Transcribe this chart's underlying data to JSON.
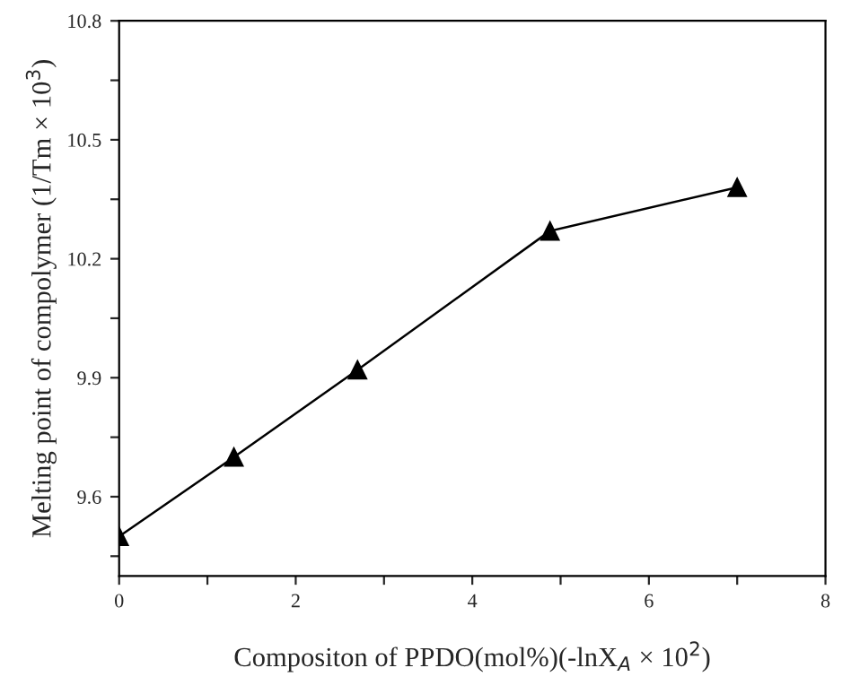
{
  "chart_data": {
    "type": "line",
    "xlabel": "Compositon of PPDO(mol%)(-lnX$_{A}$ × 10$^{2}$)",
    "ylabel": "Melting point of compolymer (1/Tm × 10$^{3}$)",
    "x": [
      0,
      1.3,
      2.7,
      4.88,
      7.0
    ],
    "series": [
      {
        "color": "#000000",
        "values": [
          9.5,
          9.7,
          9.92,
          10.27,
          10.38
        ]
      }
    ],
    "xlim": [
      0,
      8
    ],
    "xticks": [
      0,
      {
        "value": 1,
        "label": null
      },
      2,
      {
        "value": 3,
        "label": null
      },
      4,
      {
        "value": 5,
        "label": null
      },
      6,
      {
        "value": 7,
        "label": null
      },
      8
    ],
    "ylim": [
      9.4,
      10.8
    ],
    "yticks": [
      {
        "value": 9.45,
        "label": null
      },
      9.6,
      {
        "value": 9.75,
        "label": null
      },
      9.9,
      {
        "value": 10.05,
        "label": null
      },
      10.2,
      {
        "value": 10.35,
        "label": null
      },
      10.5,
      {
        "value": 10.65,
        "label": null
      },
      10.8
    ],
    "marker": "triangle",
    "line_style": "solid",
    "grid": false,
    "legend": false
  }
}
